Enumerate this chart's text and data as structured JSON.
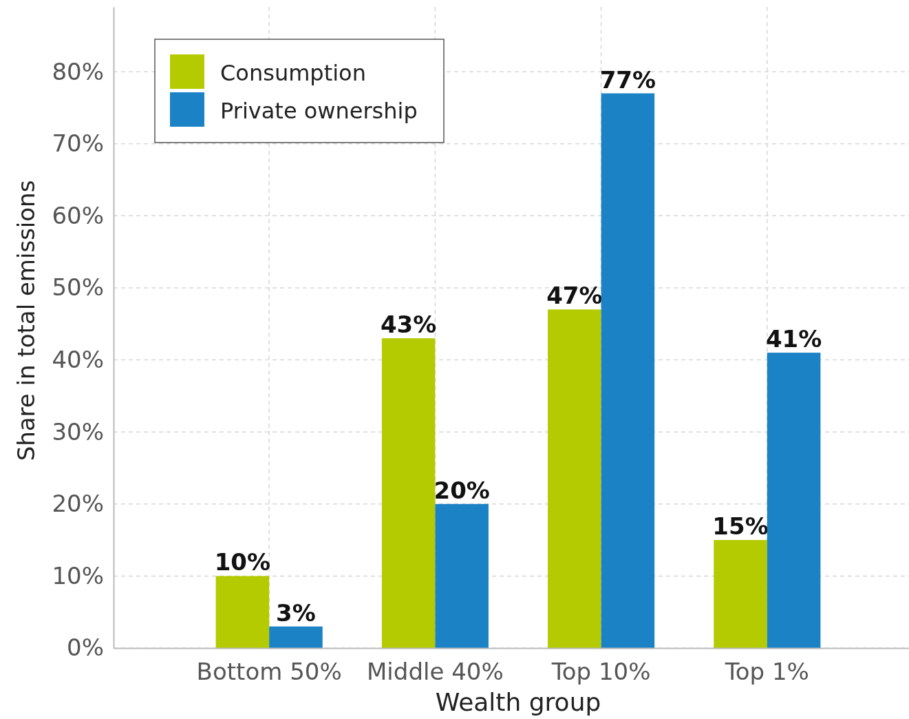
{
  "chart_data": {
    "type": "bar",
    "xlabel": "Wealth group",
    "ylabel": "Share in total emissions",
    "categories": [
      "Bottom 50%",
      "Middle 40%",
      "Top 10%",
      "Top 1%"
    ],
    "series": [
      {
        "name": "Consumption",
        "color": "#b3cb00",
        "values": [
          10,
          43,
          47,
          15
        ],
        "value_labels": [
          "10%",
          "43%",
          "47%",
          "15%"
        ]
      },
      {
        "name": "Private ownership",
        "color": "#1b82c6",
        "values": [
          3,
          20,
          77,
          41
        ],
        "value_labels": [
          "3%",
          "20%",
          "77%",
          "41%"
        ]
      }
    ],
    "ylim": [
      0,
      89
    ],
    "yticks": [
      {
        "value": 0,
        "label": "0%"
      },
      {
        "value": 10,
        "label": "10%"
      },
      {
        "value": 20,
        "label": "20%"
      },
      {
        "value": 30,
        "label": "30%"
      },
      {
        "value": 40,
        "label": "40%"
      },
      {
        "value": 50,
        "label": "50%"
      },
      {
        "value": 60,
        "label": "60%"
      },
      {
        "value": 70,
        "label": "70%"
      },
      {
        "value": 80,
        "label": "80%"
      }
    ],
    "grid": true,
    "legend": "top left"
  }
}
